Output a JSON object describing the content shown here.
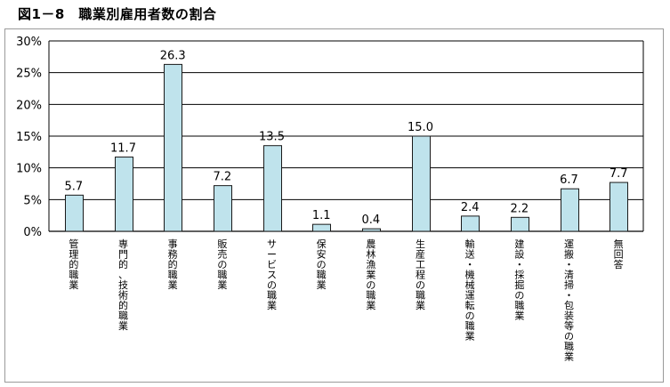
{
  "chart_data": {
    "type": "bar",
    "title": "図1－8　職業別雇用者数の割合",
    "xlabel": "",
    "ylabel": "",
    "ylim": [
      0,
      30
    ],
    "yticks": [
      "0%",
      "5%",
      "10%",
      "15%",
      "20%",
      "25%",
      "30%"
    ],
    "grid": true,
    "categories": [
      "管理的職業",
      "専門的、技術的職業",
      "事務的職業",
      "販売の職業",
      "サービスの職業",
      "保安の職業",
      "農林漁業の職業",
      "生産工程の職業",
      "輸送・機械運転の職業",
      "建設・採掘の職業",
      "運搬・清掃・包装等の職業",
      "無回答"
    ],
    "values": [
      5.7,
      11.7,
      26.3,
      7.2,
      13.5,
      1.1,
      0.4,
      15.0,
      2.4,
      2.2,
      6.7,
      7.7
    ],
    "value_labels": [
      "5.7",
      "11.7",
      "26.3",
      "7.2",
      "13.5",
      "1.1",
      "0.4",
      "15.0",
      "2.4",
      "2.2",
      "6.7",
      "7.7"
    ],
    "colors": {
      "bar_fill": "#bfe3ec",
      "bar_stroke": "#1a1a1a",
      "grid": "#000000"
    }
  }
}
